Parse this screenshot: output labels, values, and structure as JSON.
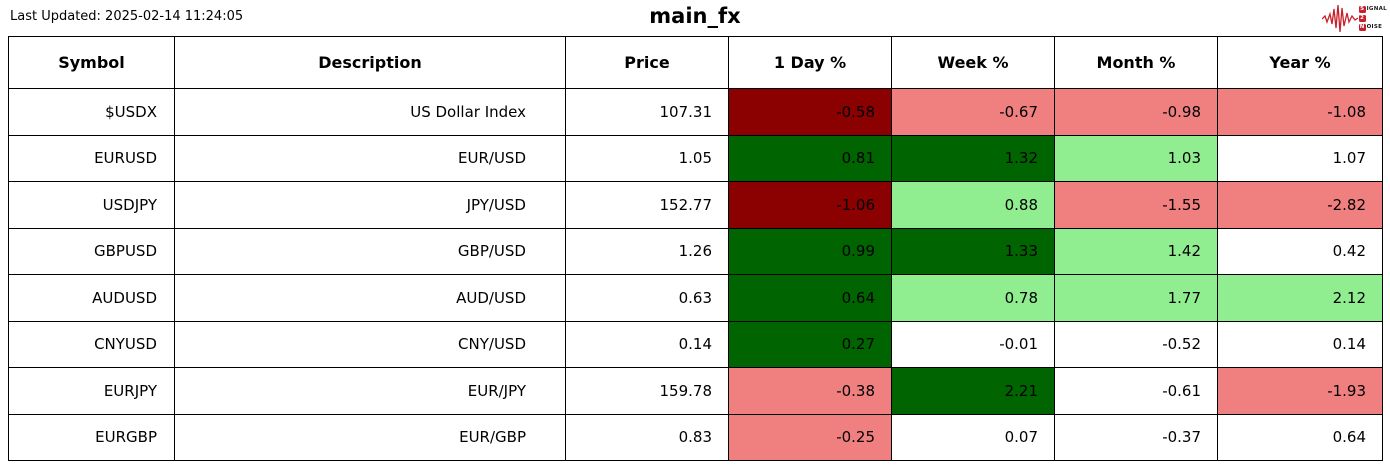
{
  "header": {
    "last_updated": "Last Updated: 2025-02-14 11:24:05",
    "title": "main_fx",
    "logo": {
      "accent_color": "#c8202a",
      "lines": [
        {
          "boxed": "S",
          "rest": "IGNAL"
        },
        {
          "boxed": "2",
          "rest": ""
        },
        {
          "boxed": "N",
          "rest": "OISE"
        }
      ]
    }
  },
  "chart_data": {
    "type": "table",
    "title": "main_fx",
    "columns": [
      "Symbol",
      "Description",
      "Price",
      "1 Day %",
      "Week %",
      "Month %",
      "Year %"
    ],
    "color_legend": {
      "strong-down": "#8b0000",
      "down": "#f08080",
      "strong-up": "#006400",
      "up": "#90ee90",
      "neutral": "#ffffff"
    },
    "rows": [
      {
        "symbol": "$USDX",
        "description": "US Dollar Index",
        "price": "107.31",
        "changes": [
          {
            "value": "-0.58",
            "tone": "strong-down"
          },
          {
            "value": "-0.67",
            "tone": "down"
          },
          {
            "value": "-0.98",
            "tone": "down"
          },
          {
            "value": "-1.08",
            "tone": "down"
          }
        ]
      },
      {
        "symbol": "EURUSD",
        "description": "EUR/USD",
        "price": "1.05",
        "changes": [
          {
            "value": "0.81",
            "tone": "strong-up"
          },
          {
            "value": "1.32",
            "tone": "strong-up"
          },
          {
            "value": "1.03",
            "tone": "up"
          },
          {
            "value": "1.07",
            "tone": "neutral"
          }
        ]
      },
      {
        "symbol": "USDJPY",
        "description": "JPY/USD",
        "price": "152.77",
        "changes": [
          {
            "value": "-1.06",
            "tone": "strong-down"
          },
          {
            "value": "0.88",
            "tone": "up"
          },
          {
            "value": "-1.55",
            "tone": "down"
          },
          {
            "value": "-2.82",
            "tone": "down"
          }
        ]
      },
      {
        "symbol": "GBPUSD",
        "description": "GBP/USD",
        "price": "1.26",
        "changes": [
          {
            "value": "0.99",
            "tone": "strong-up"
          },
          {
            "value": "1.33",
            "tone": "strong-up"
          },
          {
            "value": "1.42",
            "tone": "up"
          },
          {
            "value": "0.42",
            "tone": "neutral"
          }
        ]
      },
      {
        "symbol": "AUDUSD",
        "description": "AUD/USD",
        "price": "0.63",
        "changes": [
          {
            "value": "0.64",
            "tone": "strong-up"
          },
          {
            "value": "0.78",
            "tone": "up"
          },
          {
            "value": "1.77",
            "tone": "up"
          },
          {
            "value": "2.12",
            "tone": "up"
          }
        ]
      },
      {
        "symbol": "CNYUSD",
        "description": "CNY/USD",
        "price": "0.14",
        "changes": [
          {
            "value": "0.27",
            "tone": "strong-up"
          },
          {
            "value": "-0.01",
            "tone": "neutral"
          },
          {
            "value": "-0.52",
            "tone": "neutral"
          },
          {
            "value": "0.14",
            "tone": "neutral"
          }
        ]
      },
      {
        "symbol": "EURJPY",
        "description": "EUR/JPY",
        "price": "159.78",
        "changes": [
          {
            "value": "-0.38",
            "tone": "down"
          },
          {
            "value": "2.21",
            "tone": "strong-up"
          },
          {
            "value": "-0.61",
            "tone": "neutral"
          },
          {
            "value": "-1.93",
            "tone": "down"
          }
        ]
      },
      {
        "symbol": "EURGBP",
        "description": "EUR/GBP",
        "price": "0.83",
        "changes": [
          {
            "value": "-0.25",
            "tone": "down"
          },
          {
            "value": "0.07",
            "tone": "neutral"
          },
          {
            "value": "-0.37",
            "tone": "neutral"
          },
          {
            "value": "0.64",
            "tone": "neutral"
          }
        ]
      }
    ]
  }
}
